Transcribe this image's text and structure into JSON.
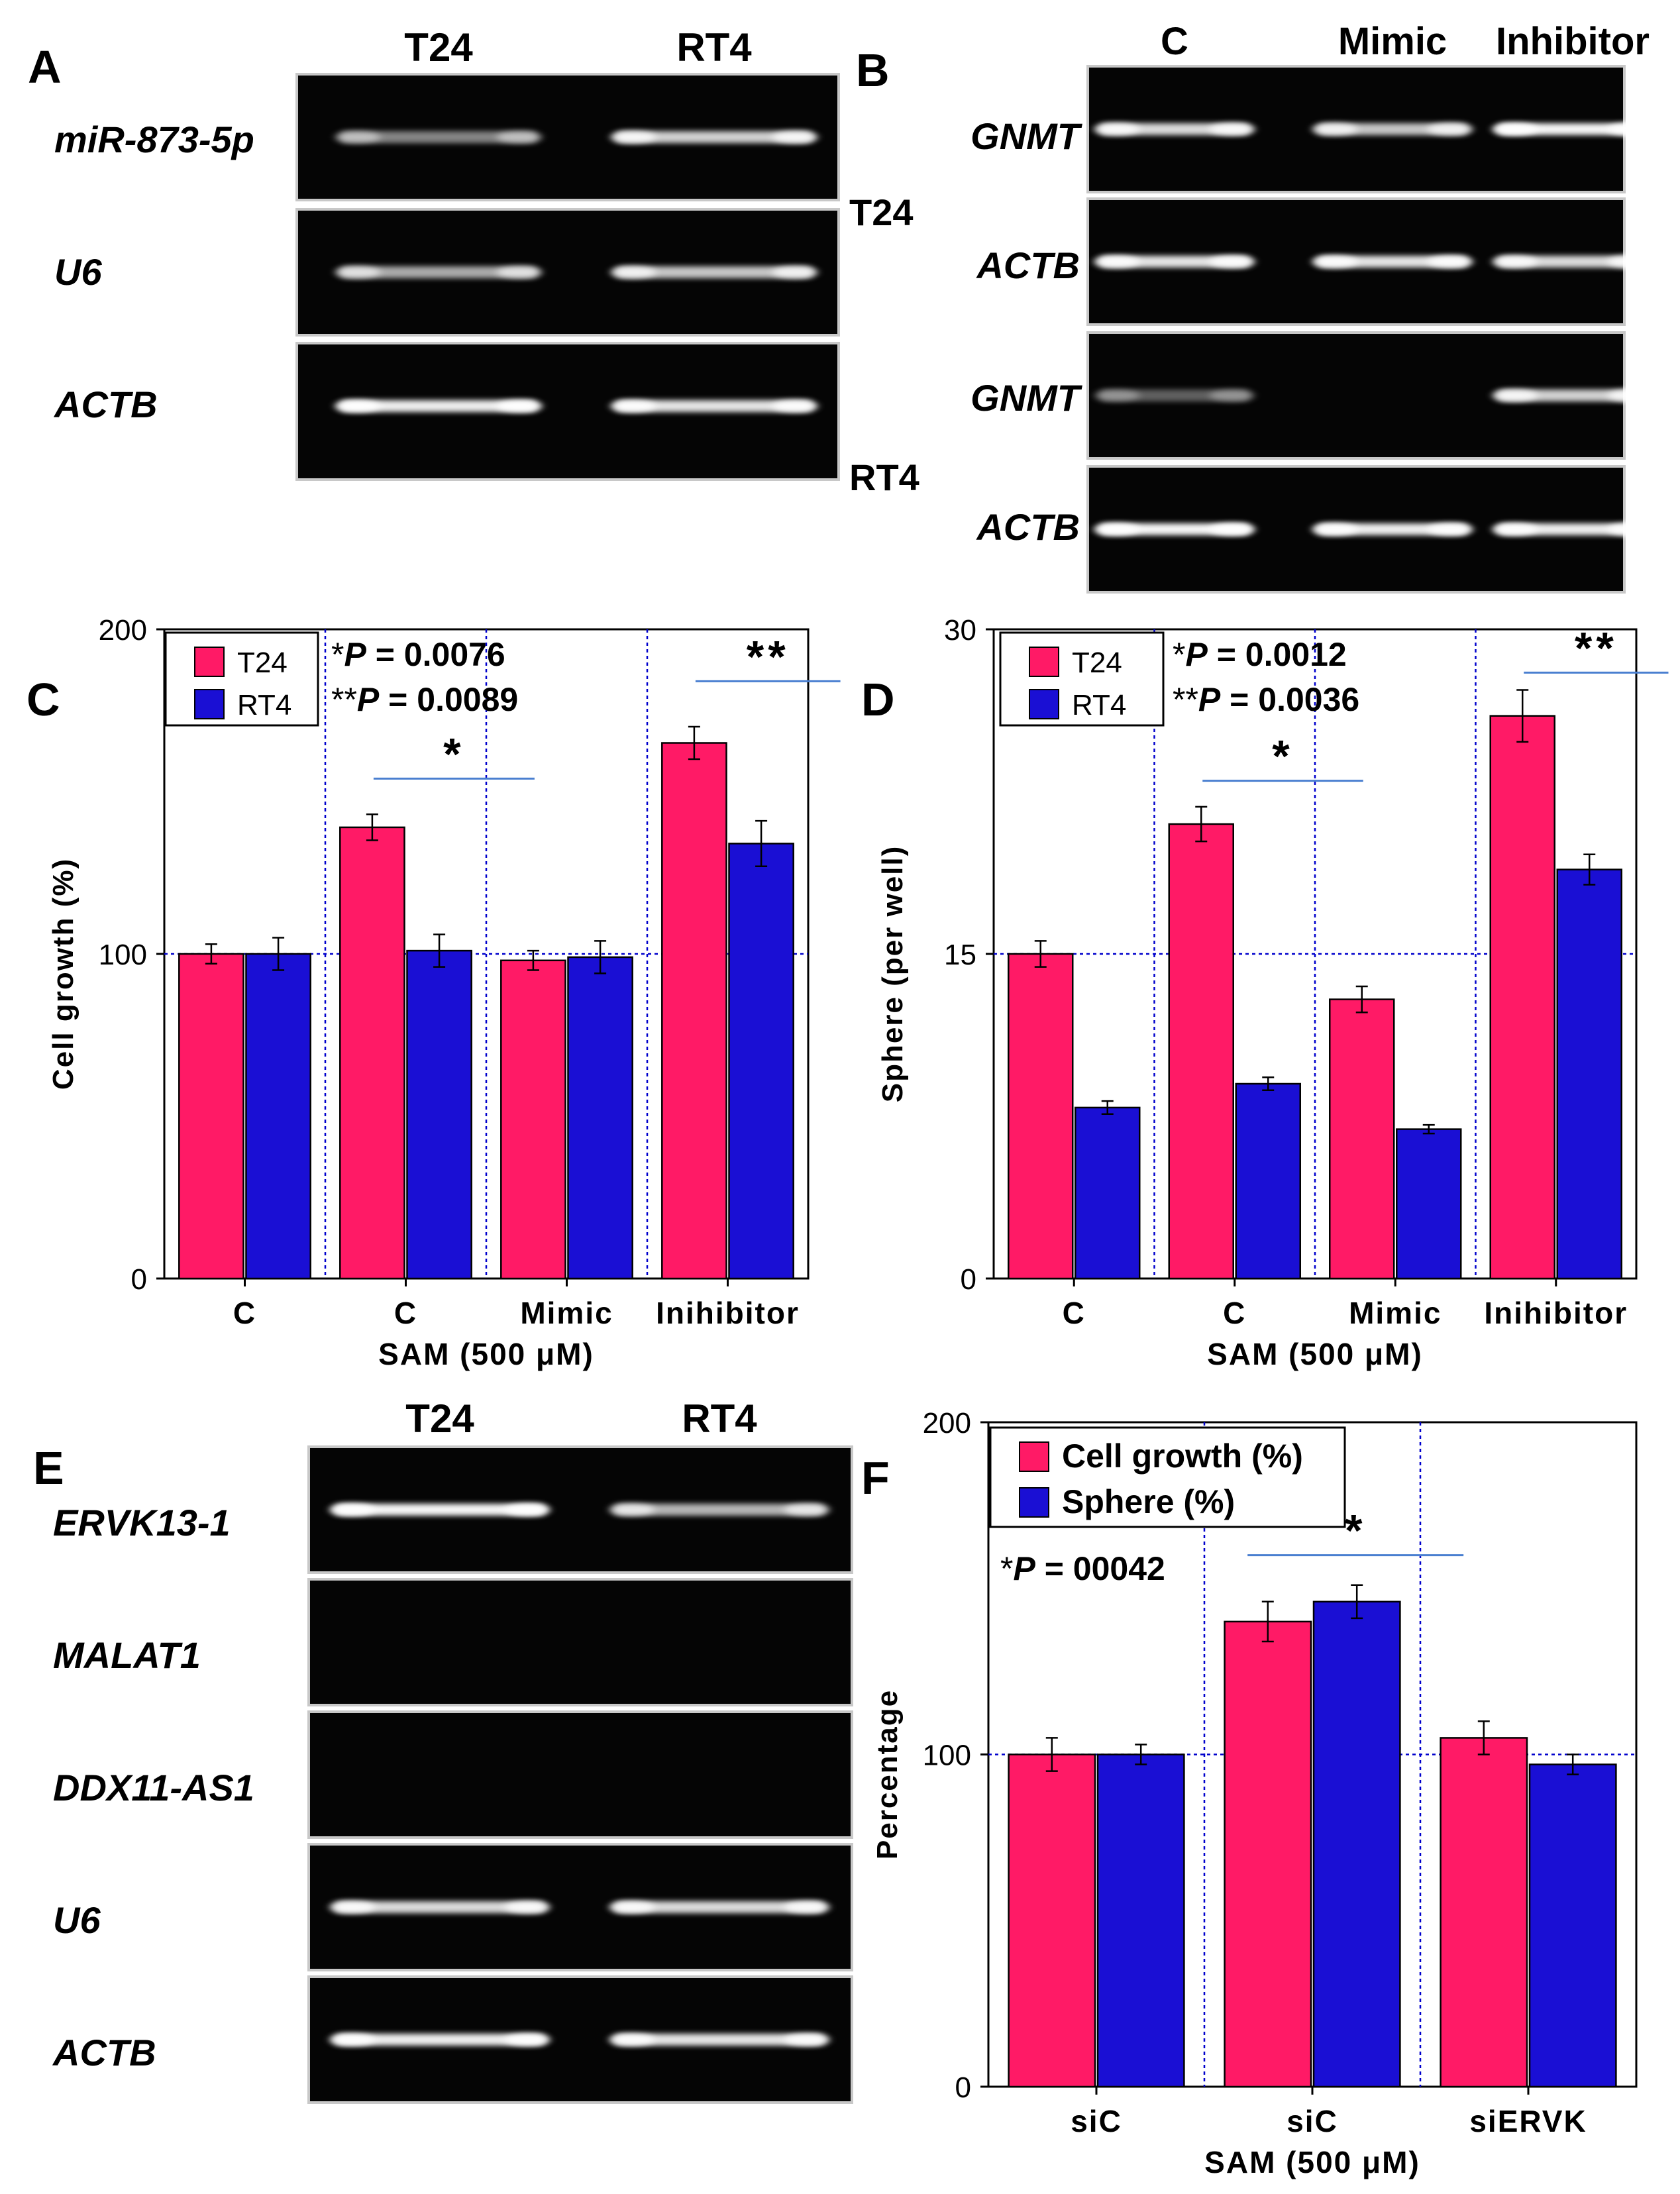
{
  "colors": {
    "t24": "#ff1a66",
    "rt4": "#1a0fd4",
    "axis": "#000000",
    "guide": "#0000cc",
    "sigline": "#4a7fd0"
  },
  "panels": {
    "A": {
      "letter": "A",
      "cols": [
        "T24",
        "RT4"
      ],
      "rows": [
        "miR-873-5p",
        "U6",
        "ACTB"
      ],
      "band_intensity": [
        [
          0.35,
          0.75
        ],
        [
          0.55,
          0.7
        ],
        [
          0.9,
          0.85
        ]
      ],
      "side_labels": [
        "T24",
        "RT4"
      ]
    },
    "B": {
      "letter": "B",
      "cols": [
        "C",
        "Mimic",
        "Inhibitor"
      ],
      "rows": [
        "GNMT",
        "ACTB",
        "GNMT",
        "ACTB"
      ],
      "band_intensity": [
        [
          0.8,
          0.7,
          0.95
        ],
        [
          0.85,
          0.85,
          0.8
        ],
        [
          0.15,
          0,
          0.75
        ],
        [
          0.95,
          0.9,
          0.9
        ]
      ]
    },
    "E": {
      "letter": "E",
      "cols": [
        "T24",
        "RT4"
      ],
      "rows": [
        "ERVK13-1",
        "MALAT1",
        "DDX11-AS1",
        "U6",
        "ACTB"
      ],
      "band_intensity": [
        [
          0.95,
          0.6
        ],
        [
          0,
          0
        ],
        [
          0,
          0
        ],
        [
          0.8,
          0.8
        ],
        [
          0.9,
          0.85
        ]
      ]
    }
  },
  "chart_data": [
    {
      "panel": "C",
      "type": "bar",
      "ylabel": "Cell growth (%)",
      "xlabel": "SAM (500 μM)",
      "categories": [
        "C",
        "C",
        "Mimic",
        "Inihibitor"
      ],
      "ylim": [
        0,
        200
      ],
      "yticks": [
        "0",
        "100",
        "200"
      ],
      "reference_line": 100,
      "series": [
        {
          "name": "T24",
          "values": [
            100,
            139,
            98,
            165
          ],
          "errors": [
            3,
            4,
            3,
            5
          ]
        },
        {
          "name": "RT4",
          "values": [
            100,
            101,
            99,
            134
          ],
          "errors": [
            5,
            5,
            5,
            7
          ]
        }
      ],
      "stats": [
        {
          "prefix": "*",
          "label": "P",
          "value": " = 0.0076"
        },
        {
          "prefix": "**",
          "label": "P",
          "value": " = 0.0089"
        }
      ],
      "sig": [
        {
          "symbol": "*",
          "from": 1,
          "to": 2,
          "y": 154
        },
        {
          "symbol": "**",
          "from": 3,
          "to": 3.9,
          "y": 184
        }
      ]
    },
    {
      "panel": "D",
      "type": "bar",
      "ylabel": "Sphere (per well)",
      "xlabel": "SAM (500 μM)",
      "categories": [
        "C",
        "C",
        "Mimic",
        "Inihibitor"
      ],
      "ylim": [
        0,
        30
      ],
      "yticks": [
        "0",
        "15",
        "30"
      ],
      "reference_line": 15,
      "series": [
        {
          "name": "T24",
          "values": [
            15,
            21,
            12.9,
            26
          ],
          "errors": [
            0.6,
            0.8,
            0.6,
            1.2
          ]
        },
        {
          "name": "RT4",
          "values": [
            7.9,
            9,
            6.9,
            18.9
          ],
          "errors": [
            0.3,
            0.3,
            0.2,
            0.7
          ]
        }
      ],
      "stats": [
        {
          "prefix": "*",
          "label": "P",
          "value": " = 0.0012"
        },
        {
          "prefix": "**",
          "label": "P",
          "value": " = 0.0036"
        }
      ],
      "sig": [
        {
          "symbol": "*",
          "from": 1,
          "to": 2,
          "y": 23
        },
        {
          "symbol": "**",
          "from": 3,
          "to": 3.9,
          "y": 28
        }
      ]
    },
    {
      "panel": "F",
      "type": "bar",
      "ylabel": "Percentage",
      "xlabel": "SAM (500 μM)",
      "categories": [
        "siC",
        "siC",
        "siERVK"
      ],
      "ylim": [
        0,
        200
      ],
      "yticks": [
        "0",
        "100",
        "200"
      ],
      "reference_line": 100,
      "series": [
        {
          "name": "Cell growth (%)",
          "values": [
            100,
            140,
            105
          ],
          "errors": [
            5,
            6,
            5
          ]
        },
        {
          "name": "Sphere (%)",
          "values": [
            100,
            146,
            97
          ],
          "errors": [
            3,
            5,
            3
          ]
        }
      ],
      "stats": [
        {
          "prefix": "*",
          "label": "P",
          "value": " = 00042"
        }
      ],
      "sig": [
        {
          "symbol": "*",
          "from": 0.9,
          "to": 1.9,
          "y": 160
        }
      ]
    }
  ]
}
